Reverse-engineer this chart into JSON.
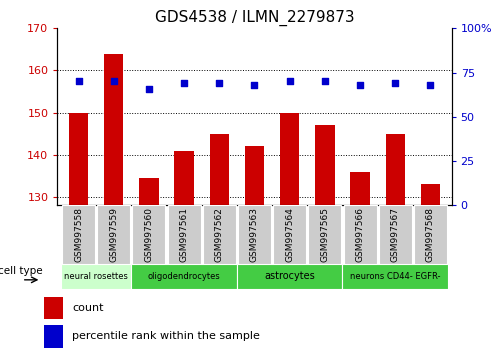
{
  "title": "GDS4538 / ILMN_2279873",
  "samples": [
    "GSM997558",
    "GSM997559",
    "GSM997560",
    "GSM997561",
    "GSM997562",
    "GSM997563",
    "GSM997564",
    "GSM997565",
    "GSM997566",
    "GSM997567",
    "GSM997568"
  ],
  "count_values": [
    150,
    164,
    134.5,
    141,
    145,
    142,
    150,
    147,
    136,
    145,
    133
  ],
  "percentile_values": [
    70,
    70,
    66,
    69,
    69,
    68,
    70,
    70,
    68,
    69,
    68
  ],
  "ylim_left": [
    128,
    170
  ],
  "ylim_right": [
    0,
    100
  ],
  "yticks_left": [
    130,
    140,
    150,
    160,
    170
  ],
  "yticks_right": [
    0,
    25,
    50,
    75,
    100
  ],
  "bar_color": "#cc0000",
  "dot_color": "#0000cc",
  "cell_groups": [
    {
      "label": "neural rosettes",
      "start": 0,
      "end": 2,
      "color": "#ccffcc"
    },
    {
      "label": "oligodendrocytes",
      "start": 2,
      "end": 5,
      "color": "#44cc44"
    },
    {
      "label": "astrocytes",
      "start": 5,
      "end": 8,
      "color": "#44cc44"
    },
    {
      "label": "neurons CD44- EGFR-",
      "start": 8,
      "end": 11,
      "color": "#44cc44"
    }
  ],
  "cell_type_label": "cell type",
  "legend_count_label": "count",
  "legend_pct_label": "percentile rank within the sample",
  "tick_label_color_left": "#cc0000",
  "tick_label_color_right": "#0000cc",
  "title_fontsize": 11,
  "bar_width": 0.55,
  "xtick_bg_color": "#cccccc",
  "xtick_font_size": 6.5
}
